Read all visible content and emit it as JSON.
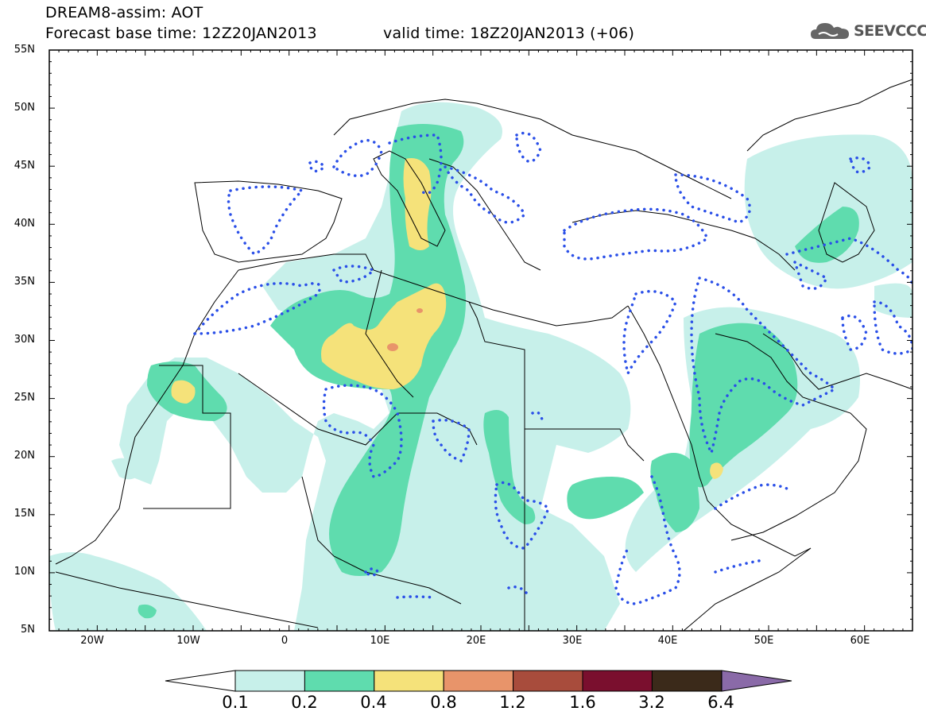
{
  "header": {
    "model_line": "DREAM8-assim: AOT",
    "base_time": "Forecast base time: 12Z20JAN2013",
    "valid_time": "valid time: 18Z20JAN2013 (+06)"
  },
  "logo": {
    "text": "SEEVCCC",
    "icon": "cloud-icon"
  },
  "map": {
    "lon_range": [
      -25,
      65
    ],
    "lat_range": [
      5,
      55
    ],
    "lat_ticks": [
      "55N",
      "50N",
      "45N",
      "40N",
      "35N",
      "30N",
      "25N",
      "20N",
      "15N",
      "10N",
      "5N"
    ],
    "lon_ticks": [
      "20W",
      "10W",
      "0",
      "10E",
      "20E",
      "30E",
      "40E",
      "50E",
      "60E"
    ]
  },
  "colorbar": {
    "labels": [
      "0.1",
      "0.2",
      "0.4",
      "0.8",
      "1.2",
      "1.6",
      "3.2",
      "6.4"
    ],
    "colors": [
      "#ffffff",
      "#c7f0ea",
      "#5fdcae",
      "#f5e27a",
      "#e8946a",
      "#a84c3c",
      "#7a0f2e",
      "#3b2a1a",
      "#8a6aa8"
    ]
  },
  "colors": {
    "level1": "#c7f0ea",
    "level2": "#5fdcae",
    "level3": "#f5e27a",
    "level4": "#e8946a",
    "dotted_contour": "#2a4fe8"
  }
}
